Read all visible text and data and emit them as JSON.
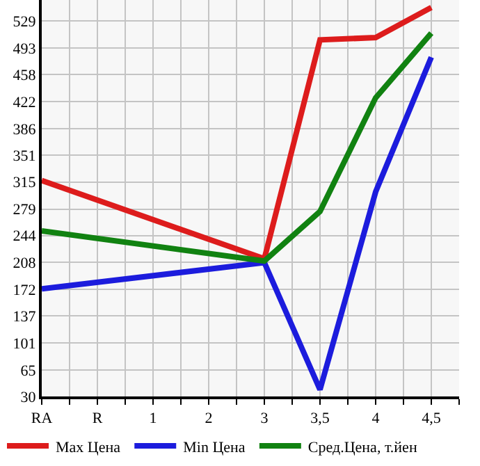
{
  "chart_data": {
    "type": "line",
    "categories": [
      "RA",
      "R",
      "1",
      "2",
      "3",
      "3,5",
      "4",
      "4,5"
    ],
    "series": [
      {
        "name": "Max Цена",
        "color": "#dd1c1c",
        "values": [
          317,
          null,
          null,
          null,
          213,
          504,
          507,
          547
        ]
      },
      {
        "name": "Min Цена",
        "color": "#1c1cdd",
        "values": [
          173,
          null,
          null,
          null,
          208,
          39,
          302,
          481
        ]
      },
      {
        "name": "Сред.Цена, т.йен",
        "color": "#118211",
        "values": [
          250,
          null,
          null,
          null,
          210,
          276,
          427,
          513
        ]
      }
    ],
    "ylim": [
      30,
      557
    ],
    "yticks": [
      30,
      65,
      101,
      137,
      172,
      208,
      244,
      279,
      315,
      351,
      386,
      422,
      458,
      493,
      529
    ],
    "grid": true,
    "legend": "bottom",
    "marker": "none",
    "line_style": "solid"
  }
}
